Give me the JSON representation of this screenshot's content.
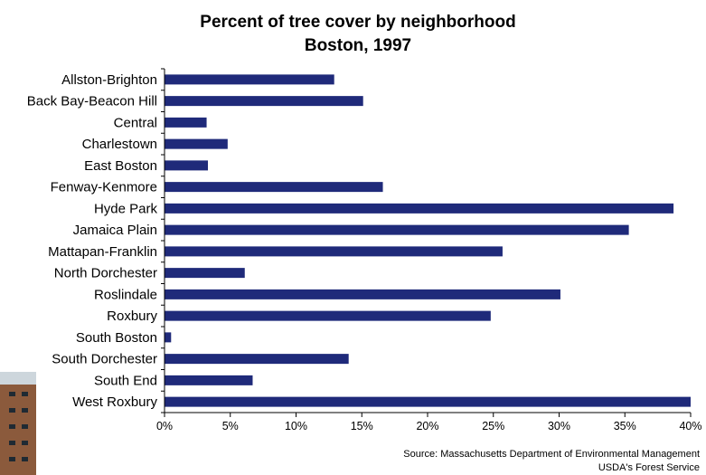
{
  "chart_data": {
    "type": "bar",
    "orientation": "horizontal",
    "title": [
      "Percent of tree cover by neighborhood",
      "Boston, 1997"
    ],
    "xlabel": "",
    "ylabel": "",
    "categories": [
      "Allston-Brighton",
      "Back Bay-Beacon Hill",
      "Central",
      "Charlestown",
      "East Boston",
      "Fenway-Kenmore",
      "Hyde Park",
      "Jamaica Plain",
      "Mattapan-Franklin",
      "North Dorchester",
      "Roslindale",
      "Roxbury",
      "South Boston",
      "South Dorchester",
      "South End",
      "West Roxbury"
    ],
    "values": [
      12.9,
      15.1,
      3.2,
      4.8,
      3.3,
      16.6,
      38.7,
      35.3,
      25.7,
      6.1,
      30.1,
      24.8,
      0.5,
      14.0,
      6.7,
      40.0
    ],
    "xlim": [
      0,
      40
    ],
    "xticks": [
      "0%",
      "5%",
      "10%",
      "15%",
      "20%",
      "25%",
      "30%",
      "35%",
      "40%"
    ],
    "xtick_values": [
      0,
      5,
      10,
      15,
      20,
      25,
      30,
      35,
      40
    ],
    "bar_color": "#1f2a7a",
    "grid": false,
    "source": [
      "Source: Massachusetts Department of Environmental Management",
      "USDA's Forest Service"
    ]
  },
  "photo_icon": "building-photo"
}
